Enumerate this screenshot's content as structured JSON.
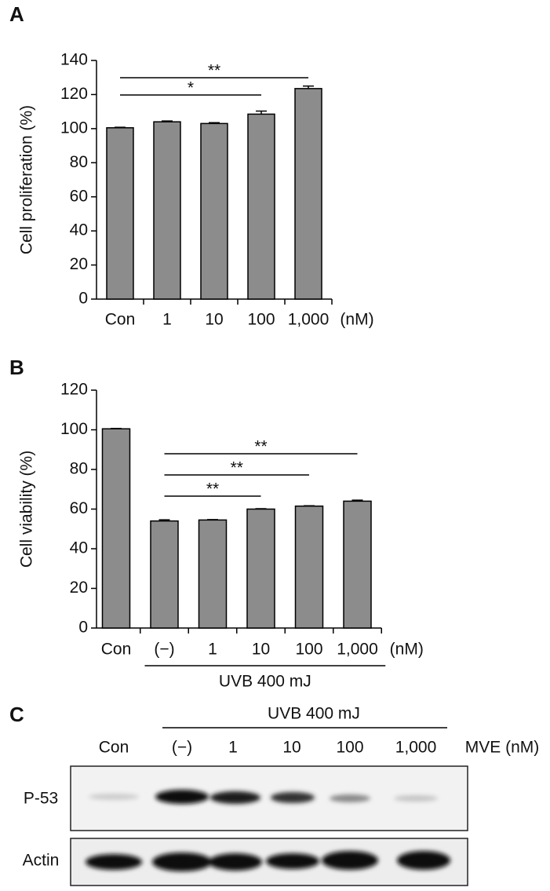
{
  "chart_data": [
    {
      "type": "bar",
      "panel": "A",
      "ylabel": "Cell proliferation (%)",
      "categories": [
        "Con",
        "1",
        "10",
        "100",
        "1,000"
      ],
      "x_unit": "(nM)",
      "values": [
        100.5,
        104,
        103,
        108.5,
        123.5
      ],
      "errors": [
        0.3,
        0.5,
        0.5,
        1.8,
        1.5
      ],
      "color": "#8c8c8c",
      "ylim": [
        0,
        140
      ],
      "yticks": [
        0,
        20,
        40,
        60,
        80,
        100,
        120,
        140
      ],
      "annotations": [
        {
          "text": "**",
          "from": "Con",
          "to": "1,000"
        },
        {
          "text": "*",
          "from": "Con",
          "to": "100"
        }
      ]
    },
    {
      "type": "bar",
      "panel": "B",
      "ylabel": "Cell viability (%)",
      "categories": [
        "Con",
        "(−)",
        "1",
        "10",
        "100",
        "1,000"
      ],
      "x_unit": "(nM)",
      "values": [
        100.5,
        54,
        54.5,
        60,
        61.5,
        64
      ],
      "errors": [
        0.2,
        0.6,
        0.2,
        0.2,
        0.2,
        0.5
      ],
      "color": "#8c8c8c",
      "ylim": [
        0,
        120
      ],
      "yticks": [
        0,
        20,
        40,
        60,
        80,
        100,
        120
      ],
      "group": {
        "label": "UVB 400 mJ",
        "from": "(−)",
        "to": "1,000"
      },
      "annotations": [
        {
          "text": "**",
          "from": "(−)",
          "to": "1,000"
        },
        {
          "text": "**",
          "from": "(−)",
          "to": "100"
        },
        {
          "text": "**",
          "from": "(−)",
          "to": "10"
        }
      ]
    }
  ],
  "blot": {
    "panel": "C",
    "treatment": "UVB 400 mJ",
    "lanes": [
      "Con",
      "(−)",
      "1",
      "10",
      "100",
      "1,000"
    ],
    "lane_unit": "MVE (nM)",
    "rows": [
      "P-53",
      "Actin"
    ]
  }
}
